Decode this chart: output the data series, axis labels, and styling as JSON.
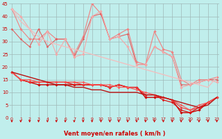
{
  "xlabel": "Vent moyen/en rafales ( km/h )",
  "bg_color": "#c0eeec",
  "grid_color": "#a0b8b8",
  "x": [
    0,
    1,
    2,
    3,
    4,
    5,
    6,
    7,
    8,
    9,
    10,
    11,
    12,
    13,
    14,
    15,
    16,
    17,
    18,
    19,
    20,
    21,
    22,
    23
  ],
  "lines": [
    {
      "y": [
        43,
        35,
        31,
        31,
        34,
        31,
        31,
        25,
        32,
        45,
        41,
        31,
        33,
        35,
        22,
        21,
        34,
        27,
        26,
        15,
        13,
        15,
        15,
        16
      ],
      "color": "#f08080",
      "lw": 0.8,
      "marker": "D",
      "ms": 1.8
    },
    {
      "y": [
        35,
        31,
        28,
        35,
        28,
        31,
        31,
        24,
        31,
        40,
        41,
        31,
        32,
        33,
        21,
        21,
        28,
        26,
        24,
        13,
        13,
        14,
        15,
        15
      ],
      "color": "#e06060",
      "lw": 0.8,
      "marker": "D",
      "ms": 1.5
    },
    {
      "y": [
        43,
        40,
        35,
        29,
        34,
        25,
        31,
        24,
        25,
        40,
        42,
        31,
        32,
        28,
        21,
        21,
        28,
        26,
        24,
        12,
        13,
        14,
        15,
        14
      ],
      "color": "#f4a8a8",
      "lw": 0.8,
      "marker": "D",
      "ms": 1.8
    },
    {
      "y": [
        18,
        15,
        14,
        13,
        13,
        13,
        13,
        13,
        13,
        13,
        13,
        12,
        13,
        12,
        12,
        8,
        8,
        8,
        7,
        2,
        2,
        3,
        6,
        8
      ],
      "color": "#cc0000",
      "lw": 1.0,
      "marker": "D",
      "ms": 1.8
    },
    {
      "y": [
        18,
        15,
        14,
        14,
        14,
        14,
        14,
        13,
        13,
        13,
        13,
        12,
        13,
        12,
        12,
        9,
        9,
        7,
        6,
        3,
        2,
        4,
        6,
        8
      ],
      "color": "#dd1111",
      "lw": 0.9,
      "marker": "D",
      "ms": 1.5
    },
    {
      "y": [
        18,
        15,
        14,
        14,
        14,
        14,
        14,
        14,
        13,
        13,
        13,
        12,
        13,
        12,
        12,
        9,
        9,
        8,
        7,
        4,
        3,
        4,
        6,
        8
      ],
      "color": "#ee3333",
      "lw": 0.8,
      "marker": "D",
      "ms": 1.5
    },
    {
      "y": [
        18,
        15,
        15,
        14,
        14,
        14,
        14,
        14,
        14,
        13,
        13,
        13,
        12,
        12,
        11,
        10,
        9,
        8,
        7,
        5,
        3,
        5,
        6,
        8
      ],
      "color": "#ff5555",
      "lw": 0.8,
      "marker": "D",
      "ms": 1.5
    },
    {
      "y": [
        43,
        38,
        35,
        32,
        30,
        29,
        28,
        27,
        26,
        25,
        24,
        23,
        22,
        21,
        20,
        19,
        18,
        17,
        16,
        15,
        14,
        13,
        12,
        16
      ],
      "color": "#f0c0c0",
      "lw": 1.0,
      "marker": null,
      "ms": 0
    },
    {
      "y": [
        18,
        17,
        16,
        15,
        14,
        13,
        13,
        12,
        12,
        11,
        11,
        10,
        10,
        10,
        10,
        9,
        9,
        8,
        7,
        6,
        5,
        4,
        5,
        8
      ],
      "color": "#bb1111",
      "lw": 1.0,
      "marker": null,
      "ms": 0
    }
  ],
  "ylim": [
    0,
    45
  ],
  "xlim": [
    -0.3,
    23.3
  ],
  "yticks": [
    0,
    5,
    10,
    15,
    20,
    25,
    30,
    35,
    40,
    45
  ],
  "xticks": [
    0,
    1,
    2,
    3,
    4,
    5,
    6,
    7,
    8,
    9,
    10,
    11,
    12,
    13,
    14,
    15,
    16,
    17,
    18,
    19,
    20,
    21,
    22,
    23
  ],
  "arrow_color": "#cc0000",
  "tick_label_color": "#cc0000"
}
